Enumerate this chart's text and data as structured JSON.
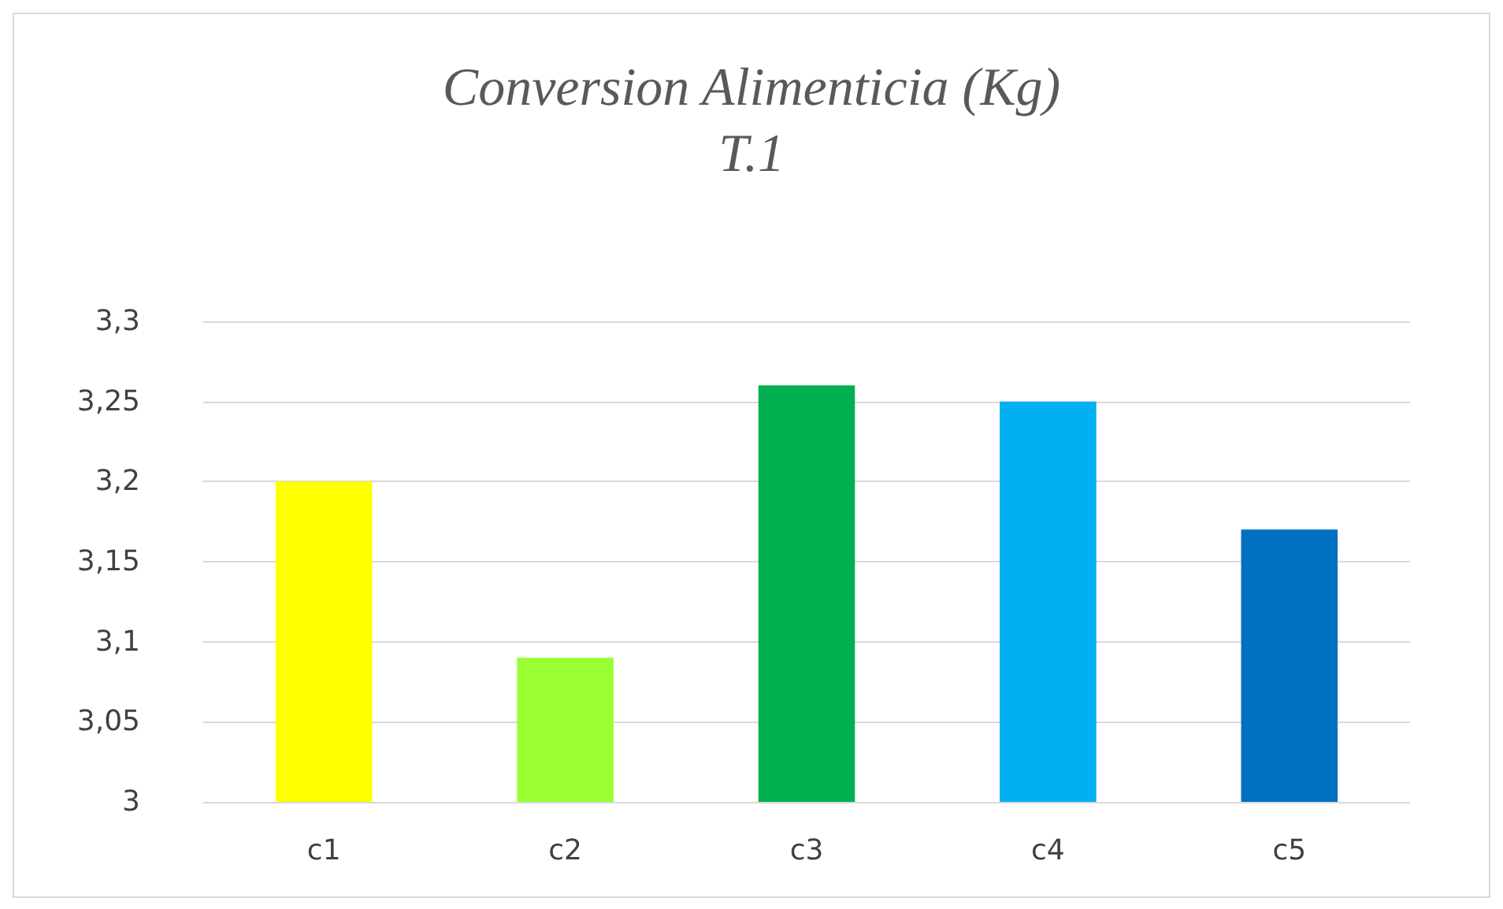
{
  "chart_data": {
    "type": "bar",
    "title": "Conversion Alimenticia (Kg)",
    "subtitle": "T.1",
    "categories": [
      "c1",
      "c2",
      "c3",
      "c4",
      "c5"
    ],
    "values": [
      3.2,
      3.09,
      3.26,
      3.25,
      3.17
    ],
    "colors": [
      "#ffff00",
      "#99ff33",
      "#00b050",
      "#00b0f0",
      "#0070c0"
    ],
    "ylim": [
      3,
      3.3
    ],
    "yticks": [
      {
        "value": 3,
        "label": "3"
      },
      {
        "value": 3.05,
        "label": "3,05"
      },
      {
        "value": 3.1,
        "label": "3,1"
      },
      {
        "value": 3.15,
        "label": "3,15"
      },
      {
        "value": 3.2,
        "label": "3,2"
      },
      {
        "value": 3.25,
        "label": "3,25"
      },
      {
        "value": 3.3,
        "label": "3,3"
      }
    ],
    "grid": true
  }
}
